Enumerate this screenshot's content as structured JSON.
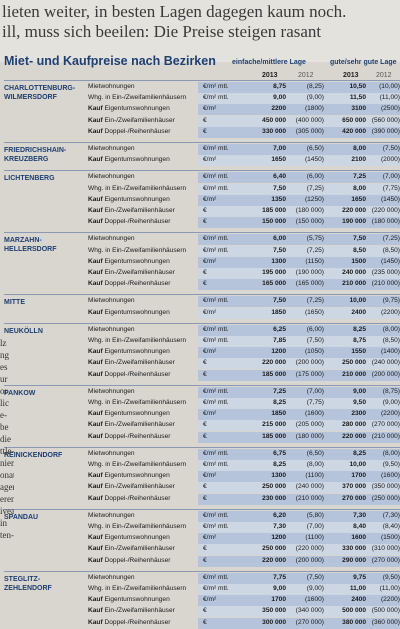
{
  "headline": {
    "line1": "lieten weiter, in besten Lagen dagegen kaum noch.",
    "line2": "ill, muss sich beeilen: Die Preise steigen rasant"
  },
  "table": {
    "title": "Miet- und Kaufpreise nach Bezirken",
    "header_mid": "einfache/mittlere Lage",
    "header_good": "gute/sehr gute Lage",
    "years": [
      "2013",
      "2012",
      "2013",
      "2012"
    ],
    "districts": [
      {
        "name": "CHARLOTTENBURG-\nWILMERSDORF",
        "rows": [
          {
            "kauf": "",
            "label": "Mietwohnungen",
            "unit": "€/m² mtl.",
            "v": [
              "8,75",
              "(8,25)",
              "10,50",
              "(10,00)"
            ]
          },
          {
            "kauf": "",
            "label": "Whg. in Ein-/Zweifamilienhäusern",
            "unit": "€/m² mtl.",
            "v": [
              "9,00",
              "(9,00)",
              "11,50",
              "(11,00)"
            ]
          },
          {
            "kauf": "Kauf",
            "label": "Eigentumswohnungen",
            "unit": "€/m²",
            "v": [
              "2200",
              "(1800)",
              "3100",
              "(2500)"
            ]
          },
          {
            "kauf": "Kauf",
            "label": "Ein-/Zweifamilienhäuser",
            "unit": "€",
            "v": [
              "450 000",
              "(400 000)",
              "650 000",
              "(560 000)"
            ]
          },
          {
            "kauf": "Kauf",
            "label": "Doppel-/Reihenhäuser",
            "unit": "€",
            "v": [
              "330 000",
              "(305 000)",
              "420 000",
              "(390 000)"
            ]
          }
        ]
      },
      {
        "name": "FRIEDRICHSHAIN-\nKREUZBERG",
        "rows": [
          {
            "kauf": "",
            "label": "Mietwohnungen",
            "unit": "€/m² mtl.",
            "v": [
              "7,00",
              "(6,50)",
              "8,00",
              "(7,50)"
            ]
          },
          {
            "kauf": "Kauf",
            "label": "Eigentumswohnungen",
            "unit": "€/m²",
            "v": [
              "1650",
              "(1450)",
              "2100",
              "(2000)"
            ]
          }
        ]
      },
      {
        "name": "LICHTENBERG",
        "rows": [
          {
            "kauf": "",
            "label": "Mietwohnungen",
            "unit": "€/m² mtl.",
            "v": [
              "6,40",
              "(6,00)",
              "7,25",
              "(7,00)"
            ]
          },
          {
            "kauf": "",
            "label": "Whg. in Ein-/Zweifamilienhäusern",
            "unit": "€/m² mtl.",
            "v": [
              "7,50",
              "(7,25)",
              "8,00",
              "(7,75)"
            ]
          },
          {
            "kauf": "Kauf",
            "label": "Eigentumswohnungen",
            "unit": "€/m²",
            "v": [
              "1350",
              "(1250)",
              "1650",
              "(1450)"
            ]
          },
          {
            "kauf": "Kauf",
            "label": "Ein-/Zweifamilienhäuser",
            "unit": "€",
            "v": [
              "185 000",
              "(180 000)",
              "220 000",
              "(220 000)"
            ]
          },
          {
            "kauf": "Kauf",
            "label": "Doppel-/Reihenhäuser",
            "unit": "€",
            "v": [
              "150 000",
              "(150 000)",
              "190 000",
              "(180 000)"
            ]
          }
        ]
      },
      {
        "name": "MARZAHN-\nHELLERSDORF",
        "rows": [
          {
            "kauf": "",
            "label": "Mietwohnungen",
            "unit": "€/m² mtl.",
            "v": [
              "6,00",
              "(5,75)",
              "7,50",
              "(7,25)"
            ]
          },
          {
            "kauf": "",
            "label": "Whg. in Ein-/Zweifamilienhäusern",
            "unit": "€/m² mtl.",
            "v": [
              "7,50",
              "(7,25)",
              "8,50",
              "(8,50)"
            ]
          },
          {
            "kauf": "Kauf",
            "label": "Eigentumswohnungen",
            "unit": "€/m²",
            "v": [
              "1300",
              "(1150)",
              "1500",
              "(1450)"
            ]
          },
          {
            "kauf": "Kauf",
            "label": "Ein-/Zweifamilienhäuser",
            "unit": "€",
            "v": [
              "195 000",
              "(190 000)",
              "240 000",
              "(235 000)"
            ]
          },
          {
            "kauf": "Kauf",
            "label": "Doppel-/Reihenhäuser",
            "unit": "€",
            "v": [
              "165 000",
              "(165 000)",
              "210 000",
              "(210 000)"
            ]
          }
        ]
      },
      {
        "name": "MITTE",
        "rows": [
          {
            "kauf": "",
            "label": "Mietwohnungen",
            "unit": "€/m² mtl.",
            "v": [
              "7,50",
              "(7,25)",
              "10,00",
              "(9,75)"
            ]
          },
          {
            "kauf": "Kauf",
            "label": "Eigentumswohnungen",
            "unit": "€/m²",
            "v": [
              "1850",
              "(1650)",
              "2400",
              "(2200)"
            ]
          }
        ]
      },
      {
        "name": "NEUKÖLLN",
        "rows": [
          {
            "kauf": "",
            "label": "Mietwohnungen",
            "unit": "€/m² mtl.",
            "v": [
              "6,25",
              "(6,00)",
              "8,25",
              "(8,00)"
            ]
          },
          {
            "kauf": "",
            "label": "Whg. in Ein-/Zweifamilienhäusern",
            "unit": "€/m² mtl.",
            "v": [
              "7,85",
              "(7,50)",
              "8,75",
              "(8,50)"
            ]
          },
          {
            "kauf": "Kauf",
            "label": "Eigentumswohnungen",
            "unit": "€/m²",
            "v": [
              "1200",
              "(1050)",
              "1550",
              "(1400)"
            ]
          },
          {
            "kauf": "Kauf",
            "label": "Ein-/Zweifamilienhäuser",
            "unit": "€",
            "v": [
              "220 000",
              "(200 000)",
              "250 000",
              "(240 000)"
            ]
          },
          {
            "kauf": "Kauf",
            "label": "Doppel-/Reihenhäuser",
            "unit": "€",
            "v": [
              "185 000",
              "(175 000)",
              "210 000",
              "(200 000)"
            ]
          }
        ]
      },
      {
        "name": "PANKOW",
        "rows": [
          {
            "kauf": "",
            "label": "Mietwohnungen",
            "unit": "€/m² mtl.",
            "v": [
              "7,25",
              "(7,00)",
              "9,00",
              "(8,75)"
            ]
          },
          {
            "kauf": "",
            "label": "Whg. in Ein-/Zweifamilienhäusern",
            "unit": "€/m² mtl.",
            "v": [
              "8,25",
              "(7,75)",
              "9,50",
              "(9,00)"
            ]
          },
          {
            "kauf": "Kauf",
            "label": "Eigentumswohnungen",
            "unit": "€/m²",
            "v": [
              "1850",
              "(1600)",
              "2300",
              "(2200)"
            ]
          },
          {
            "kauf": "Kauf",
            "label": "Ein-/Zweifamilienhäuser",
            "unit": "€",
            "v": [
              "215 000",
              "(205 000)",
              "280 000",
              "(270 000)"
            ]
          },
          {
            "kauf": "Kauf",
            "label": "Doppel-/Reihenhäuser",
            "unit": "€",
            "v": [
              "185 000",
              "(180 000)",
              "220 000",
              "(210 000)"
            ]
          }
        ]
      },
      {
        "name": "REINICKENDORF",
        "rows": [
          {
            "kauf": "",
            "label": "Mietwohnungen",
            "unit": "€/m² mtl.",
            "v": [
              "6,75",
              "(6,50)",
              "8,25",
              "(8,00)"
            ]
          },
          {
            "kauf": "",
            "label": "Whg. in Ein-/Zweifamilienhäusern",
            "unit": "€/m² mtl.",
            "v": [
              "8,25",
              "(8,00)",
              "10,00",
              "(9,50)"
            ]
          },
          {
            "kauf": "Kauf",
            "label": "Eigentumswohnungen",
            "unit": "€/m²",
            "v": [
              "1300",
              "(1100)",
              "1700",
              "(1600)"
            ]
          },
          {
            "kauf": "Kauf",
            "label": "Ein-/Zweifamilienhäuser",
            "unit": "€",
            "v": [
              "250 000",
              "(240 000)",
              "370 000",
              "(350 000)"
            ]
          },
          {
            "kauf": "Kauf",
            "label": "Doppel-/Reihenhäuser",
            "unit": "€",
            "v": [
              "230 000",
              "(210 000)",
              "270 000",
              "(250 000)"
            ]
          }
        ]
      },
      {
        "name": "SPANDAU",
        "rows": [
          {
            "kauf": "",
            "label": "Mietwohnungen",
            "unit": "€/m² mtl.",
            "v": [
              "6,20",
              "(5,80)",
              "7,30",
              "(7,30)"
            ]
          },
          {
            "kauf": "",
            "label": "Whg. in Ein-/Zweifamilienhäusern",
            "unit": "€/m² mtl.",
            "v": [
              "7,30",
              "(7,00)",
              "8,40",
              "(8,40)"
            ]
          },
          {
            "kauf": "Kauf",
            "label": "Eigentumswohnungen",
            "unit": "€/m²",
            "v": [
              "1200",
              "(1100)",
              "1600",
              "(1500)"
            ]
          },
          {
            "kauf": "Kauf",
            "label": "Ein-/Zweifamilienhäuser",
            "unit": "€",
            "v": [
              "250 000",
              "(220 000)",
              "330 000",
              "(310 000)"
            ]
          },
          {
            "kauf": "Kauf",
            "label": "Doppel-/Reihenhäuser",
            "unit": "€",
            "v": [
              "220 000",
              "(200 000)",
              "290 000",
              "(270 000)"
            ]
          }
        ]
      },
      {
        "name": "STEGLITZ-\nZEHLENDORF",
        "rows": [
          {
            "kauf": "",
            "label": "Mietwohnungen",
            "unit": "€/m² mtl.",
            "v": [
              "7,75",
              "(7,50)",
              "9,75",
              "(9,50)"
            ]
          },
          {
            "kauf": "",
            "label": "Whg. in Ein-/Zweifamilienhäusern",
            "unit": "€/m² mtl.",
            "v": [
              "9,00",
              "(9,00)",
              "11,00",
              "(11,00)"
            ]
          },
          {
            "kauf": "Kauf",
            "label": "Eigentumswohnungen",
            "unit": "€/m²",
            "v": [
              "1700",
              "(1600)",
              "2400",
              "(2200)"
            ]
          },
          {
            "kauf": "Kauf",
            "label": "Ein-/Zweifamilienhäuser",
            "unit": "€",
            "v": [
              "350 000",
              "(340 000)",
              "500 000",
              "(500 000)"
            ]
          },
          {
            "kauf": "Kauf",
            "label": "Doppel-/Reihenhäuser",
            "unit": "€",
            "v": [
              "300 000",
              "(270 000)",
              "380 000",
              "(360 000)"
            ]
          }
        ]
      }
    ]
  },
  "margin_text": {
    "left": [
      "lz",
      "ng",
      "es",
      "ur",
      "or",
      "lic",
      "e-",
      "be",
      "die",
      "ttle-",
      "niemo",
      "onat.",
      "agen",
      "eren",
      "iveau",
      "in",
      "ten-"
    ]
  }
}
